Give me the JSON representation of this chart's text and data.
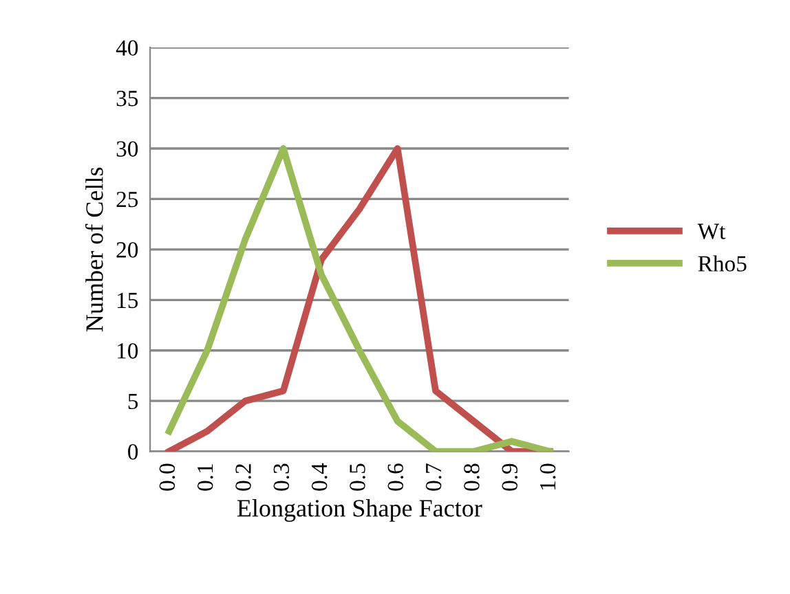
{
  "chart_data": {
    "type": "line",
    "xlabel": "Elongation Shape Factor",
    "ylabel": "Number of Cells",
    "categories": [
      "0.0",
      "0.1",
      "0.2",
      "0.3",
      "0.4",
      "0.5",
      "0.6",
      "0.7",
      "0.8",
      "0.9",
      "1.0"
    ],
    "series": [
      {
        "name": "Wt",
        "color": "#c0504d",
        "values": [
          0,
          2,
          5,
          6,
          19,
          24,
          30,
          6,
          3,
          0,
          0
        ]
      },
      {
        "name": "Rho5",
        "color": "#9bbb59",
        "values": [
          2,
          10,
          21,
          30,
          17.5,
          10,
          3,
          0,
          0,
          1,
          0
        ]
      }
    ],
    "ylim": [
      0,
      40
    ],
    "yticks": [
      0,
      5,
      10,
      15,
      20,
      25,
      30,
      35,
      40
    ],
    "grid": "y",
    "legend": "right",
    "marker": "none",
    "line_style": "solid"
  }
}
